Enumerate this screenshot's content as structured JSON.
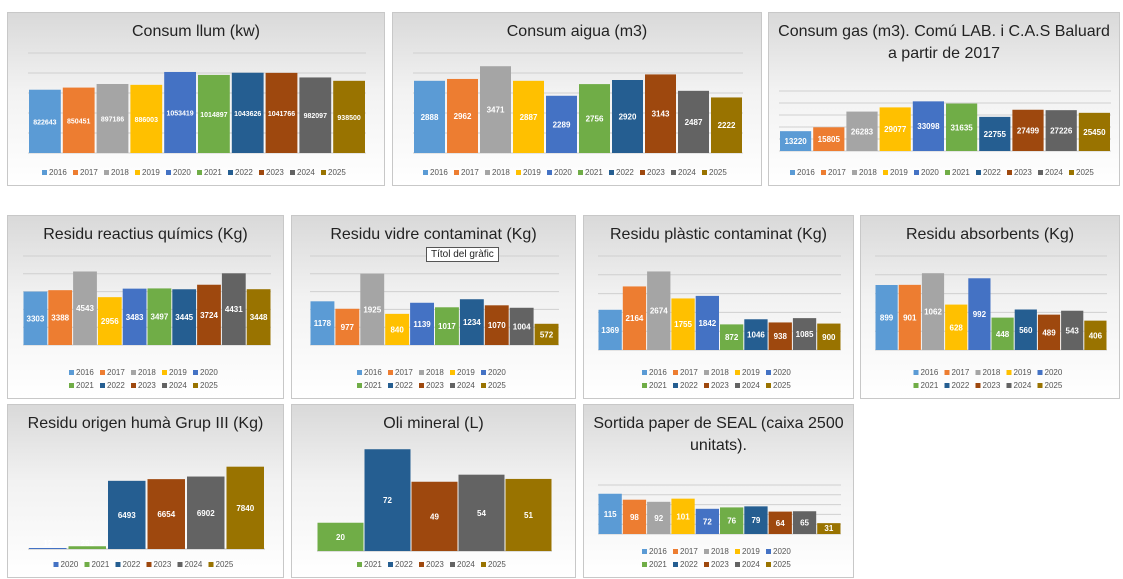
{
  "tooltip": "Títol del gràfic",
  "chart_data": [
    {
      "id": "llum",
      "type": "bar",
      "title": "Consum llum (kw)",
      "categories": [
        "2016",
        "2017",
        "2018",
        "2019",
        "2020",
        "2021",
        "2022",
        "2023",
        "2024",
        "2025"
      ],
      "values": [
        822643,
        850451,
        897186,
        886003,
        1053419,
        1014897,
        1043626,
        1041766,
        982097,
        938500
      ],
      "ylim": [
        0,
        1300000
      ],
      "grid": true,
      "legend": "bottom"
    },
    {
      "id": "aigua",
      "type": "bar",
      "title": "Consum aigua (m3)",
      "categories": [
        "2016",
        "2017",
        "2018",
        "2019",
        "2020",
        "2021",
        "2022",
        "2023",
        "2024",
        "2025"
      ],
      "values": [
        2888,
        2962,
        3471,
        2887,
        2289,
        2756,
        2920,
        3143,
        2487,
        2222
      ],
      "ylim": [
        0,
        4000
      ],
      "grid": true,
      "legend": "bottom"
    },
    {
      "id": "gas",
      "type": "bar",
      "title": "Consum gas (m3). Comú LAB. i C.A.S Baluard a partir de 2017",
      "categories": [
        "2016",
        "2017",
        "2018",
        "2019",
        "2020",
        "2021",
        "2022",
        "2023",
        "2024",
        "2025"
      ],
      "values": [
        13220,
        15805,
        26283,
        29077,
        33098,
        31635,
        22755,
        27499,
        27226,
        25450
      ],
      "ylim": [
        0,
        40000
      ],
      "grid": true,
      "legend": "bottom"
    },
    {
      "id": "reactius",
      "type": "bar",
      "title": "Residu reactius químics (Kg)",
      "categories": [
        "2016",
        "2017",
        "2018",
        "2019",
        "2020",
        "2021",
        "2022",
        "2023",
        "2024",
        "2025"
      ],
      "values": [
        3303,
        3388,
        4543,
        2956,
        3483,
        3497,
        3445,
        3724,
        4431,
        3448
      ],
      "ylim": [
        0,
        5500
      ],
      "grid": true,
      "legend": "bottom"
    },
    {
      "id": "vidre",
      "type": "bar",
      "title": "Residu vidre contaminat (Kg)",
      "categories": [
        "2016",
        "2017",
        "2018",
        "2019",
        "2020",
        "2021",
        "2022",
        "2023",
        "2024",
        "2025"
      ],
      "values": [
        1178,
        977,
        1925,
        840,
        1139,
        1017,
        1234,
        1070,
        1004,
        572
      ],
      "ylim": [
        0,
        2400
      ],
      "grid": true,
      "legend": "bottom"
    },
    {
      "id": "plastic",
      "type": "bar",
      "title": "Residu plàstic contaminat (Kg)",
      "categories": [
        "2016",
        "2017",
        "2018",
        "2019",
        "2020",
        "2021",
        "2022",
        "2023",
        "2024",
        "2025"
      ],
      "values": [
        1369,
        2164,
        2674,
        1755,
        1842,
        872,
        1046,
        938,
        1085,
        900
      ],
      "ylim": [
        0,
        3200
      ],
      "grid": true,
      "legend": "bottom"
    },
    {
      "id": "absorbents",
      "type": "bar",
      "title": "Residu absorbents (Kg)",
      "categories": [
        "2016",
        "2017",
        "2018",
        "2019",
        "2020",
        "2021",
        "2022",
        "2023",
        "2024",
        "2025"
      ],
      "values": [
        899,
        901,
        1062,
        628,
        992,
        448,
        560,
        489,
        543,
        406
      ],
      "ylim": [
        0,
        1300
      ],
      "grid": true,
      "legend": "bottom"
    },
    {
      "id": "huma",
      "type": "bar",
      "title": "Residu origen humà Grup III (Kg)",
      "categories": [
        "2020",
        "2021",
        "2022",
        "2023",
        "2024",
        "2025"
      ],
      "values": [
        12,
        262,
        6493,
        6654,
        6902,
        7840
      ],
      "ylim": [
        0,
        8000
      ],
      "grid": false,
      "legend": "bottom"
    },
    {
      "id": "oli",
      "type": "bar",
      "title": "Oli mineral (L)",
      "categories": [
        "2021",
        "2022",
        "2023",
        "2024",
        "2025"
      ],
      "values": [
        20,
        72,
        49,
        54,
        51
      ],
      "ylim": [
        0,
        75
      ],
      "grid": false,
      "legend": "bottom"
    },
    {
      "id": "paper",
      "type": "bar",
      "title": "Sortida paper de SEAL (caixa 2500 unitats).",
      "categories": [
        "2016",
        "2017",
        "2018",
        "2019",
        "2020",
        "2021",
        "2022",
        "2023",
        "2024",
        "2025"
      ],
      "values": [
        115,
        98,
        92,
        101,
        72,
        76,
        79,
        64,
        65,
        31
      ],
      "ylim": [
        0,
        140
      ],
      "grid": true,
      "legend": "bottom"
    }
  ],
  "year_colors": {
    "2016": "#5b9bd5",
    "2017": "#ed7d31",
    "2018": "#a5a5a5",
    "2019": "#ffc000",
    "2020": "#4472c4",
    "2021": "#70ad47",
    "2022": "#255e91",
    "2023": "#9e480e",
    "2024": "#636363",
    "2025": "#997300"
  }
}
